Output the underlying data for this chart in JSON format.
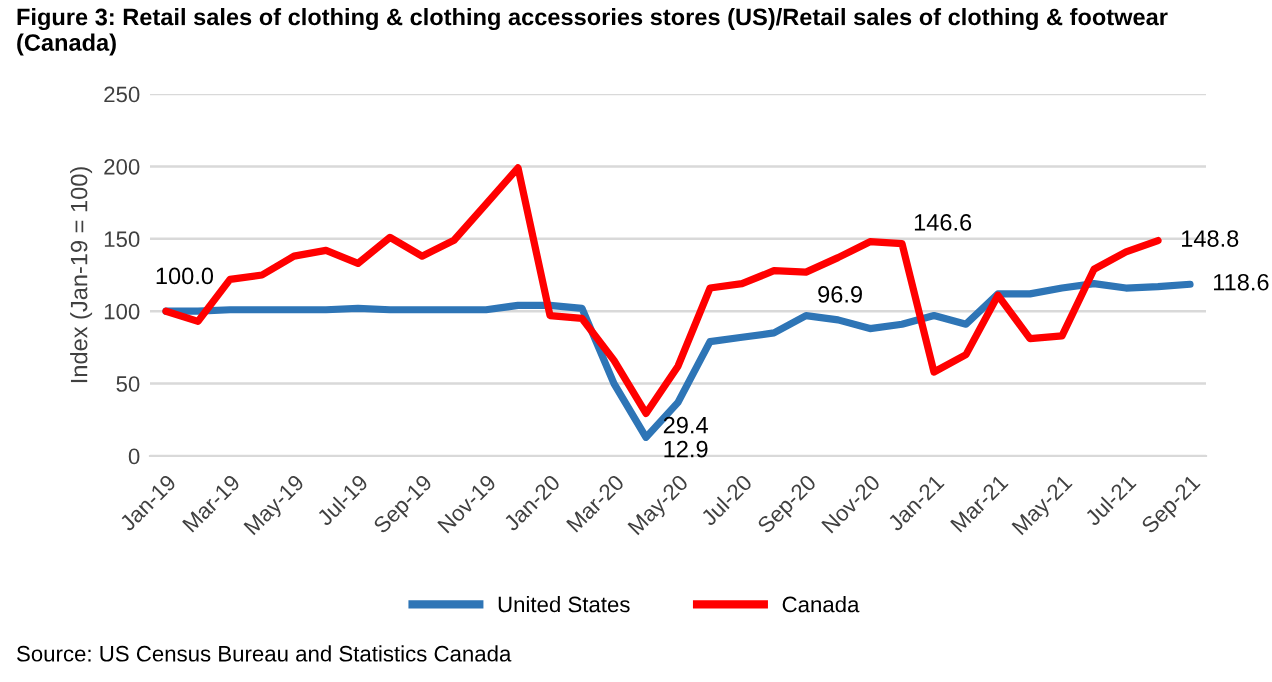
{
  "chart_data": {
    "type": "line",
    "title": "Figure 3: Retail sales of clothing & clothing accessories stores (US)/Retail sales of clothing & footwear (Canada)",
    "ylabel": "Index (Jan-19 = 100)",
    "categories": [
      "Jan-19",
      null,
      "Mar-19",
      null,
      "May-19",
      null,
      "Jul-19",
      null,
      "Sep-19",
      null,
      "Nov-19",
      null,
      "Jan-20",
      null,
      "Mar-20",
      null,
      "May-20",
      null,
      "Jul-20",
      null,
      "Sep-20",
      null,
      "Nov-20",
      null,
      "Jan-21",
      null,
      "Mar-21",
      null,
      "May-21",
      null,
      "Jul-21",
      null,
      "Sep-21"
    ],
    "series": [
      {
        "name": "United States",
        "color": "#2e75b6",
        "values": [
          100.0,
          100,
          101,
          101,
          101,
          101,
          102,
          101,
          101,
          101,
          101,
          104,
          104,
          102,
          50,
          12.9,
          37,
          79,
          82,
          85,
          96.9,
          94,
          88,
          91,
          97,
          91,
          112,
          112,
          116,
          119,
          116,
          117,
          118.6
        ],
        "value_labels": [
          "100.0",
          null,
          null,
          null,
          null,
          null,
          null,
          null,
          null,
          null,
          null,
          null,
          null,
          null,
          null,
          "12.9",
          null,
          null,
          null,
          null,
          "96.9",
          null,
          null,
          null,
          null,
          null,
          null,
          null,
          null,
          null,
          null,
          null,
          "118.6"
        ]
      },
      {
        "name": "Canada",
        "color": "#ff0000",
        "values": [
          100.0,
          93,
          122,
          125,
          138,
          142,
          133,
          151,
          138,
          149,
          174,
          199,
          97,
          95,
          66,
          29.4,
          62,
          116,
          119,
          128,
          127,
          137,
          148,
          146.6,
          58,
          70,
          111,
          81,
          83,
          129,
          141,
          148.8,
          null
        ],
        "value_labels": [
          null,
          null,
          null,
          null,
          null,
          null,
          null,
          null,
          null,
          null,
          null,
          null,
          null,
          null,
          null,
          "29.4",
          null,
          null,
          null,
          null,
          null,
          null,
          null,
          "146.6",
          null,
          null,
          null,
          null,
          null,
          null,
          null,
          "148.8",
          null
        ]
      }
    ],
    "ylim": [
      0,
      250
    ],
    "yticks": [
      0,
      50,
      100,
      150,
      200,
      250
    ],
    "grid": "y",
    "legend": "bottom",
    "marker": "none",
    "line_style": "solid",
    "annotations": [
      "Source: US Census Bureau and Statistics Canada"
    ]
  }
}
